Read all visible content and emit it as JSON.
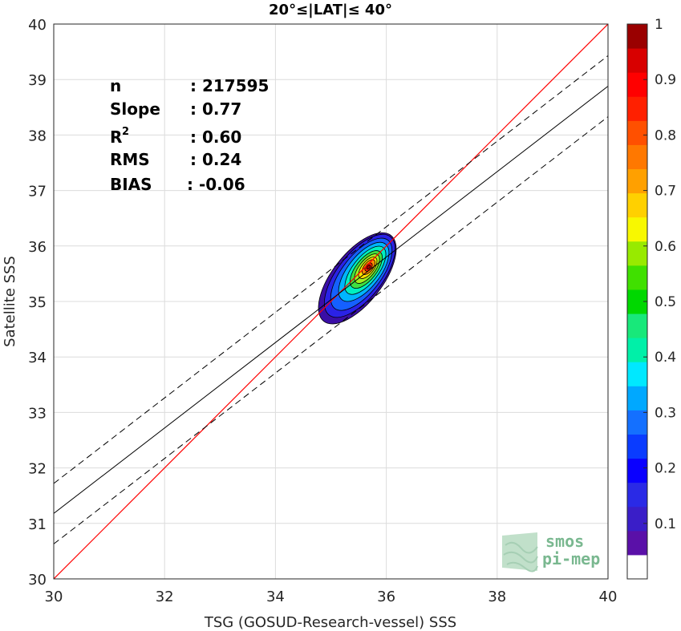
{
  "chart_data": {
    "type": "contour",
    "title": "20°≤|LAT|≤ 40°",
    "xlabel": "TSG (GOSUD-Research-vessel) SSS",
    "ylabel": "Satellite SSS",
    "xlim": [
      30,
      40
    ],
    "ylim": [
      30,
      40
    ],
    "xticks": [
      "30",
      "32",
      "34",
      "36",
      "38",
      "40"
    ],
    "yticks": [
      "30",
      "31",
      "32",
      "33",
      "34",
      "35",
      "36",
      "37",
      "38",
      "39",
      "40"
    ],
    "grid": true,
    "stats": [
      {
        "label": "n",
        "value": ": 217595"
      },
      {
        "label": "Slope",
        "value": ": 0.77"
      },
      {
        "label": "R",
        "sup": "2",
        "value": ": 0.60"
      },
      {
        "label": "RMS",
        "value": ": 0.24"
      },
      {
        "label": "BIAS",
        "value": ": -0.06"
      }
    ],
    "lines": {
      "one_to_one": {
        "color": "#ff0000",
        "slope": 1,
        "intercept": 0
      },
      "fit": {
        "color": "#000000",
        "slope": 0.77,
        "y_at_30": 31.18
      },
      "fit_offset_upper": {
        "color": "#000000",
        "dashed": true,
        "y_at_30": 31.72,
        "y_at_40": 39.43
      },
      "fit_offset_lower": {
        "color": "#000000",
        "dashed": true,
        "y_at_30": 30.63,
        "y_at_40": 38.33
      }
    },
    "density_center": {
      "x": 35.68,
      "y": 35.62
    },
    "contour_levels": [
      {
        "level": 0.05,
        "color": "#3a0ea6"
      },
      {
        "level": 0.1,
        "color": "#2a22e6"
      },
      {
        "level": 0.2,
        "color": "#1560ff"
      },
      {
        "level": 0.3,
        "color": "#00b5ff"
      },
      {
        "level": 0.4,
        "color": "#00f0c0"
      },
      {
        "level": 0.5,
        "color": "#40e040"
      },
      {
        "level": 0.6,
        "color": "#a0f020"
      },
      {
        "level": 0.7,
        "color": "#ffe000"
      },
      {
        "level": 0.8,
        "color": "#ff8a00"
      },
      {
        "level": 0.9,
        "color": "#ff2000"
      },
      {
        "level": 0.97,
        "color": "#a00000"
      }
    ],
    "colorbar": {
      "range": [
        0,
        1
      ],
      "tick_labels": [
        "0.1",
        "0.2",
        "0.3",
        "0.4",
        "0.5",
        "0.6",
        "0.7",
        "0.8",
        "0.9",
        "1"
      ],
      "colors": [
        "#ffffff",
        "#5a10a8",
        "#3a1ec8",
        "#2a2ae6",
        "#0a00ff",
        "#0a3cff",
        "#1470ff",
        "#00a8ff",
        "#00e8ff",
        "#00f0a8",
        "#18e87a",
        "#00d800",
        "#40e000",
        "#98ea00",
        "#f8f800",
        "#ffd000",
        "#ffa000",
        "#ff7800",
        "#ff5000",
        "#ff2000",
        "#ff0000",
        "#d80000",
        "#9a0000"
      ]
    }
  },
  "logo": {
    "line1": "smos",
    "line2": "pi-mep"
  }
}
